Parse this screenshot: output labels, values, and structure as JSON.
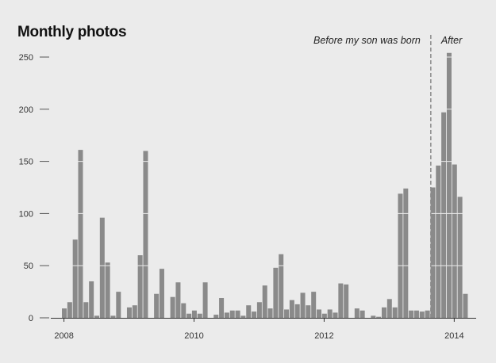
{
  "chart_data": {
    "type": "bar",
    "title": "Monthly photos",
    "xlabel": "",
    "ylabel": "",
    "ylim": [
      0,
      260
    ],
    "yticks": [
      0,
      50,
      100,
      150,
      200,
      250
    ],
    "xticks": [
      "2008",
      "2010",
      "2012",
      "2014"
    ],
    "grid": true,
    "x_start": "2008-01",
    "months": [
      "2008-01",
      "2008-02",
      "2008-03",
      "2008-04",
      "2008-05",
      "2008-06",
      "2008-07",
      "2008-08",
      "2008-09",
      "2008-10",
      "2008-11",
      "2008-12",
      "2009-01",
      "2009-02",
      "2009-03",
      "2009-04",
      "2009-05",
      "2009-06",
      "2009-07",
      "2009-08",
      "2009-09",
      "2009-10",
      "2009-11",
      "2009-12",
      "2010-01",
      "2010-02",
      "2010-03",
      "2010-04",
      "2010-05",
      "2010-06",
      "2010-07",
      "2010-08",
      "2010-09",
      "2010-10",
      "2010-11",
      "2010-12",
      "2011-01",
      "2011-02",
      "2011-03",
      "2011-04",
      "2011-05",
      "2011-06",
      "2011-07",
      "2011-08",
      "2011-09",
      "2011-10",
      "2011-11",
      "2011-12",
      "2012-01",
      "2012-02",
      "2012-03",
      "2012-04",
      "2012-05",
      "2012-06",
      "2012-07",
      "2012-08",
      "2012-09",
      "2012-10",
      "2012-11",
      "2012-12",
      "2013-01",
      "2013-02",
      "2013-03",
      "2013-04",
      "2013-05",
      "2013-06",
      "2013-07",
      "2013-08",
      "2013-09",
      "2013-10",
      "2013-11",
      "2013-12",
      "2014-01",
      "2014-02",
      "2014-03",
      "2014-04"
    ],
    "values": [
      9,
      15,
      75,
      161,
      15,
      35,
      2,
      96,
      53,
      2,
      25,
      0,
      10,
      12,
      60,
      160,
      0,
      23,
      47,
      0,
      20,
      34,
      14,
      4,
      7,
      4,
      34,
      0,
      3,
      19,
      5,
      7,
      7,
      2,
      12,
      6,
      15,
      31,
      9,
      48,
      61,
      8,
      17,
      13,
      24,
      12,
      25,
      8,
      4,
      8,
      5,
      33,
      32,
      0,
      9,
      7,
      0,
      2,
      1,
      10,
      18,
      10,
      119,
      124,
      7,
      7,
      6,
      7,
      125,
      146,
      197,
      254,
      147,
      116,
      23,
      0
    ],
    "annotations": [
      {
        "text": "Before my son was born",
        "month": "2013-09"
      },
      {
        "text": "After",
        "month": "2013-09"
      }
    ],
    "divider_month": "2013-09"
  }
}
